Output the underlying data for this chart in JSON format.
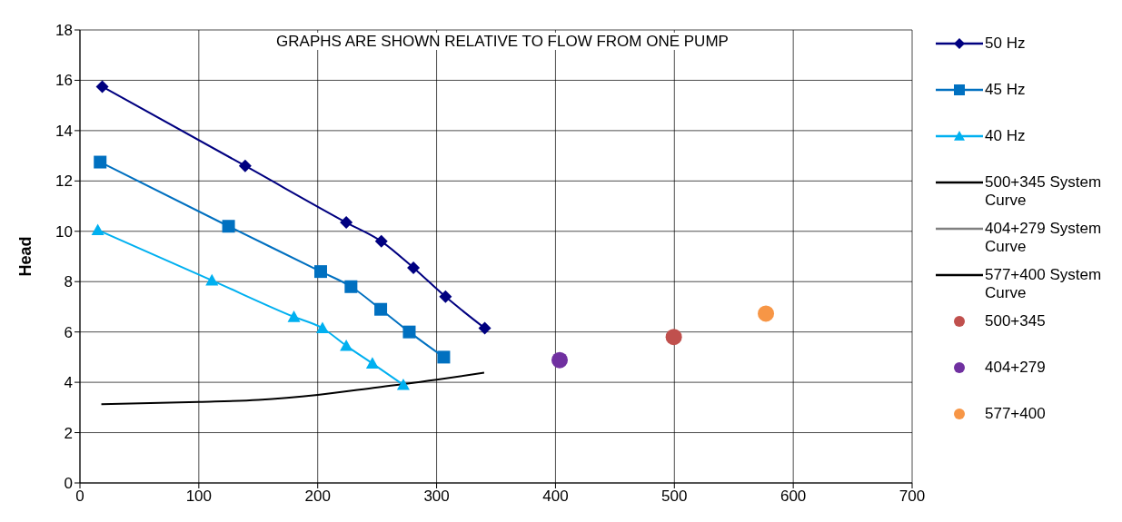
{
  "chart_data": {
    "type": "line",
    "title": "GRAPHS ARE SHOWN RELATIVE TO FLOW FROM ONE PUMP",
    "ylabel": "Head",
    "xlim": [
      0,
      700
    ],
    "xticks": [
      0,
      100,
      200,
      300,
      400,
      500,
      600,
      700
    ],
    "ylim": [
      0,
      18
    ],
    "yticks": [
      0,
      2,
      4,
      6,
      8,
      10,
      12,
      14,
      16,
      18
    ],
    "grid": true,
    "legend": "right",
    "series": [
      {
        "name": "50 Hz",
        "color": "#000080",
        "marker": "diamond",
        "x": [
          18.75,
          139,
          224,
          253.5,
          280.5,
          307.5,
          340.5
        ],
        "values": [
          15.75,
          12.6,
          10.35,
          9.6,
          8.55,
          7.4,
          6.15
        ]
      },
      {
        "name": "45 Hz",
        "color": "#0070c0",
        "marker": "square",
        "x": [
          17,
          125,
          202.5,
          228,
          253,
          277,
          306
        ],
        "values": [
          12.75,
          10.2,
          8.4,
          7.8,
          6.9,
          6.0,
          5.0
        ]
      },
      {
        "name": "40 Hz",
        "color": "#00b0f0",
        "marker": "triangle",
        "x": [
          15,
          111,
          180,
          204,
          224,
          246,
          272
        ],
        "values": [
          10.05,
          8.05,
          6.6,
          6.15,
          5.45,
          4.75,
          3.9
        ]
      },
      {
        "name": "500+345 System Curve",
        "color": "#000000",
        "marker": "none",
        "x": [
          18,
          100,
          150,
          200,
          250,
          300,
          340
        ],
        "values": [
          3.13,
          3.22,
          3.3,
          3.5,
          3.8,
          4.1,
          4.38
        ]
      },
      {
        "name": "404+279 System Curve",
        "color": "#808080",
        "marker": "none",
        "values": [
          null
        ]
      },
      {
        "name": "577+400 System Curve",
        "color": "#000000",
        "marker": "none",
        "values": [
          null
        ]
      },
      {
        "name": "500+345",
        "type": "scatter",
        "color": "#c0504d",
        "marker": "circle",
        "x": [
          499.5
        ],
        "values": [
          5.8
        ]
      },
      {
        "name": "404+279",
        "type": "scatter",
        "color": "#7030a0",
        "marker": "circle",
        "x": [
          403.5
        ],
        "values": [
          4.88
        ]
      },
      {
        "name": "577+400",
        "type": "scatter",
        "color": "#f79646",
        "marker": "circle",
        "x": [
          577
        ],
        "values": [
          6.73
        ]
      }
    ]
  }
}
